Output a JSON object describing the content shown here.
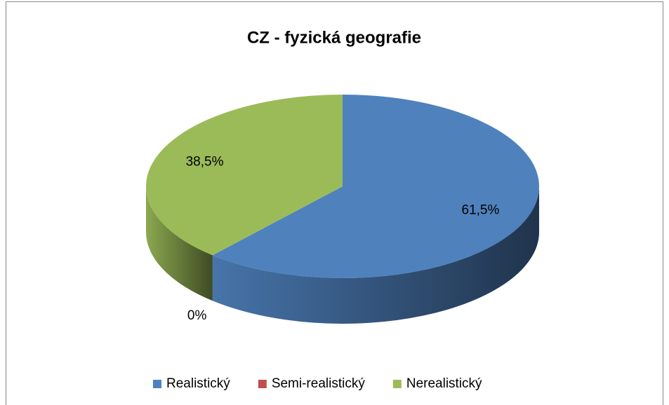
{
  "chart_data": {
    "type": "pie",
    "title": "CZ - fyzická geografie",
    "categories": [
      "Realistický",
      "Semi-realistický",
      "Nerealistický"
    ],
    "values": [
      61.5,
      0,
      38.5
    ],
    "value_labels": [
      "61,5%",
      "0%",
      "38,5%"
    ],
    "colors": [
      "#4f81bd",
      "#c0504d",
      "#9bbb59"
    ],
    "legend": "bottom"
  }
}
